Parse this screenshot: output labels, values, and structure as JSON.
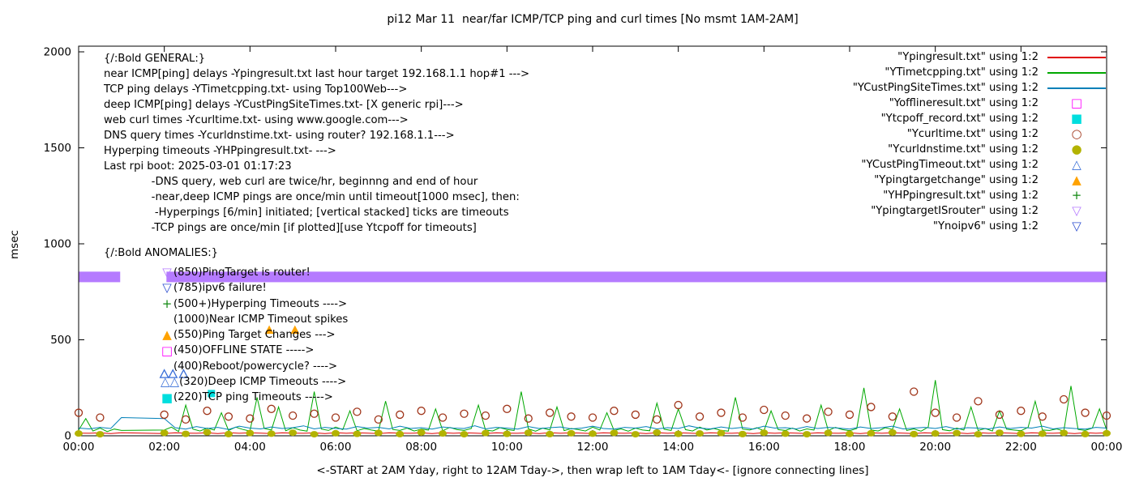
{
  "chart_data": {
    "type": "line",
    "title": "pi12 Mar 11  near/far ICMP/TCP ping and curl times [No msmt 1AM-2AM]",
    "x_label": "<-START at 2AM Yday, right to 12AM Tday->, then wrap left to 1AM Tday<- [ignore connecting lines]",
    "y_label": "msec",
    "y_max": 2000,
    "x_hours": 24,
    "y_ticks": [
      0,
      500,
      1000,
      1500,
      2000
    ],
    "x_tick_labels": [
      "00:00",
      "02:00",
      "04:00",
      "06:00",
      "08:00",
      "10:00",
      "12:00",
      "14:00",
      "16:00",
      "18:00",
      "20:00",
      "22:00",
      "00:00"
    ],
    "grid": false,
    "legend_position": "top-right",
    "legend": [
      {
        "label": "\"Ypingresult.txt\" using 1:2",
        "sample": "line",
        "color": "#e00000"
      },
      {
        "label": "\"YTimetcpping.txt\" using 1:2",
        "sample": "line",
        "color": "#00a800"
      },
      {
        "label": "\"YCustPingSiteTimes.txt\" using 1:2",
        "sample": "line",
        "color": "#0080b8"
      },
      {
        "label": "\"Yofflineresult.txt\" using 1:2",
        "sample": "square-open",
        "color": "#ff00ff"
      },
      {
        "label": "\"Ytcpoff_record.txt\" using 1:2",
        "sample": "square-filled",
        "color": "#00dede"
      },
      {
        "label": "\"Ycurltime.txt\" using 1:2",
        "sample": "circle-open",
        "color": "#a0351a"
      },
      {
        "label": "\"Ycurldnstime.txt\" using 1:2",
        "sample": "circle-filled",
        "color": "#b3b300"
      },
      {
        "label": "\"YCustPingTimeout.txt\" using 1:2",
        "sample": "tri-up-open",
        "color": "#3a6fd8"
      },
      {
        "label": "\"Ypingtargetchange\" using 1:2",
        "sample": "tri-up-filled",
        "color": "#ffa200"
      },
      {
        "label": "\"YHPpingresult.txt\" using 1:2",
        "sample": "plus",
        "color": "#118811"
      },
      {
        "label": "\"YpingtargetISrouter\" using 1:2",
        "sample": "tri-down-open",
        "color": "#b57bff"
      },
      {
        "label": "\"Ynoipv6\" using 1:2",
        "sample": "tri-down-open",
        "color": "#2e4fd0"
      }
    ],
    "lines": [
      {
        "name": "Ypingresult.txt",
        "color": "#e00000",
        "x_start": 0,
        "x_step_hours": 0.25,
        "values": [
          14,
          13,
          15,
          12,
          16,
          null,
          null,
          null,
          12,
          15,
          14,
          13,
          15,
          12,
          16,
          13,
          15,
          14,
          12,
          15,
          14,
          13,
          15,
          12,
          16,
          13,
          15,
          14,
          12,
          15,
          14,
          13,
          15,
          12,
          16,
          13,
          15,
          14,
          12,
          15,
          14,
          13,
          15,
          12,
          16,
          13,
          15,
          14,
          12,
          15,
          14,
          13,
          15,
          12,
          16,
          13,
          15,
          14,
          12,
          15,
          14,
          13,
          15,
          12,
          16,
          13,
          15,
          14,
          12,
          15,
          14,
          13,
          15,
          12,
          16,
          13,
          15,
          14,
          12,
          15,
          14,
          13,
          15,
          12,
          16,
          13,
          15,
          14,
          12,
          15,
          14,
          13,
          15,
          12,
          16,
          13,
          15
        ]
      },
      {
        "name": "YTimetcpping.txt",
        "color": "#00a800",
        "x_start": 0,
        "x_step_hours": 0.1666667,
        "values": [
          30,
          90,
          25,
          40,
          22,
          35,
          28,
          null,
          null,
          null,
          null,
          null,
          30,
          45,
          22,
          160,
          35,
          25,
          40,
          30,
          120,
          28,
          45,
          33,
          25,
          200,
          38,
          30,
          150,
          26,
          42,
          30,
          24,
          230,
          35,
          28,
          45,
          32,
          130,
          26,
          38,
          30,
          24,
          180,
          33,
          28,
          40,
          25,
          35,
          30,
          140,
          26,
          44,
          32,
          28,
          38,
          160,
          30,
          25,
          42,
          33,
          28,
          230,
          36,
          24,
          40,
          30,
          150,
          27,
          38,
          32,
          25,
          45,
          30,
          120,
          28,
          36,
          24,
          40,
          30,
          26,
          170,
          34,
          28,
          140,
          32,
          25,
          45,
          30,
          38,
          28,
          24,
          200,
          35,
          30,
          42,
          26,
          130,
          32,
          28,
          40,
          25,
          36,
          30,
          160,
          28,
          44,
          32,
          26,
          38,
          250,
          30,
          25,
          42,
          33,
          140,
          28,
          36,
          24,
          45,
          290,
          32,
          26,
          40,
          30,
          150,
          28,
          38,
          25,
          130,
          34,
          30,
          26,
          44,
          180,
          30,
          28,
          36,
          25,
          260,
          33,
          28,
          40,
          140,
          30
        ]
      },
      {
        "name": "YCustPingSiteTimes.txt",
        "color": "#0080b8",
        "x_start": 0,
        "x_step_hours": 0.25,
        "values": [
          40,
          36,
          44,
          38,
          95,
          null,
          null,
          null,
          90,
          42,
          35,
          48,
          38,
          44,
          33,
          50,
          40,
          36,
          46,
          38,
          42,
          52,
          36,
          44,
          38,
          35,
          48,
          40,
          44,
          36,
          50,
          38,
          42,
          35,
          46,
          40,
          38,
          52,
          36,
          44,
          40,
          35,
          48,
          38,
          42,
          46,
          36,
          40,
          50,
          38,
          35,
          44,
          40,
          48,
          36,
          42,
          38,
          52,
          40,
          36,
          46,
          38,
          44,
          35,
          50,
          40,
          42,
          36,
          48,
          38,
          44,
          40,
          35,
          46,
          38,
          42,
          50,
          36,
          40,
          44,
          38,
          48,
          35,
          42,
          40,
          36,
          46,
          38,
          44,
          40,
          50,
          36,
          42,
          38,
          35,
          44,
          40
        ]
      }
    ],
    "points": [
      {
        "name": "Ycurltime.txt",
        "marker": "circle-open",
        "color": "#a0351a",
        "x": [
          0,
          0.5,
          2,
          2.5,
          3,
          3.5,
          4,
          4.5,
          5,
          5.5,
          6,
          6.5,
          7,
          7.5,
          8,
          8.5,
          9,
          9.5,
          10,
          10.5,
          11,
          11.5,
          12,
          12.5,
          13,
          13.5,
          14,
          14.5,
          15,
          15.5,
          16,
          16.5,
          17,
          17.5,
          18,
          18.5,
          19,
          19.5,
          20,
          20.5,
          21,
          21.5,
          22,
          22.5,
          23,
          23.5,
          24
        ],
        "y": [
          120,
          95,
          110,
          85,
          130,
          100,
          90,
          140,
          105,
          115,
          95,
          125,
          85,
          110,
          130,
          95,
          115,
          105,
          140,
          90,
          120,
          100,
          95,
          130,
          110,
          85,
          160,
          100,
          120,
          95,
          135,
          105,
          90,
          125,
          110,
          150,
          100,
          230,
          120,
          95,
          180,
          110,
          130,
          100,
          190,
          120,
          105
        ]
      },
      {
        "name": "Ycurldnstime.txt",
        "marker": "circle-filled",
        "color": "#b3b300",
        "x": [
          0,
          0.5,
          2,
          2.5,
          3,
          3.5,
          4,
          4.5,
          5,
          5.5,
          6,
          6.5,
          7,
          7.5,
          8,
          8.5,
          9,
          9.5,
          10,
          10.5,
          11,
          11.5,
          12,
          12.5,
          13,
          13.5,
          14,
          14.5,
          15,
          15.5,
          16,
          16.5,
          17,
          17.5,
          18,
          18.5,
          19,
          19.5,
          20,
          20.5,
          21,
          21.5,
          22,
          22.5,
          23,
          23.5,
          24
        ],
        "y": [
          12,
          8,
          15,
          10,
          18,
          9,
          14,
          11,
          16,
          8,
          13,
          10,
          15,
          9,
          17,
          12,
          8,
          14,
          10,
          16,
          9,
          13,
          11,
          15,
          8,
          17,
          10,
          12,
          14,
          9,
          16,
          11,
          8,
          15,
          10,
          13,
          17,
          9,
          12,
          14,
          8,
          16,
          10,
          11,
          15,
          9,
          13
        ]
      },
      {
        "name": "YCustPingTimeout.txt",
        "marker": "tri-up-open",
        "color": "#3a6fd8",
        "x": [
          2.0,
          2.2,
          2.45
        ],
        "y": [
          320,
          320,
          320
        ]
      },
      {
        "name": "Ypingtargetchange",
        "marker": "tri-up-filled",
        "color": "#ffa200",
        "x": [
          4.45,
          5.05
        ],
        "y": [
          550,
          550
        ]
      },
      {
        "name": "Ytcpoff_record.txt",
        "marker": "square-filled",
        "color": "#00dede",
        "x": [
          3.1
        ],
        "y": [
          220
        ]
      },
      {
        "name": "Yofflineresult.txt",
        "marker": "square-open",
        "color": "#ff00ff",
        "x": [],
        "y": []
      },
      {
        "name": "YHPpingresult.txt",
        "marker": "plus",
        "color": "#118811",
        "x": [],
        "y": []
      },
      {
        "name": "Ynoipv6",
        "marker": "tri-down-open",
        "color": "#2e4fd0",
        "x": [],
        "y": []
      }
    ],
    "band": {
      "name": "YpingtargetISrouter",
      "color": "#b57bff",
      "y_top": 855,
      "y_bottom": 800,
      "segments": [
        [
          0,
          0.97
        ],
        [
          2.05,
          24
        ]
      ]
    }
  },
  "annotations": {
    "general_lines": [
      "{/:Bold GENERAL:}",
      "near ICMP[ping] delays -Ypingresult.txt last hour target 192.168.1.1 hop#1 --->",
      "TCP ping delays -YTimetcpping.txt- using Top100Web--->",
      "deep ICMP[ping] delays -YCustPingSiteTimes.txt- [X generic rpi]--->",
      "web curl times -Ycurltime.txt- using www.google.com--->",
      "DNS query times -Ycurldnstime.txt- using router? 192.168.1.1--->",
      "Hyperping timeouts -YHPpingresult.txt- --->",
      "Last rpi boot: 2025-03-01 01:17:23",
      "              -DNS query, web curl are twice/hr, beginnng and end of hour",
      "              -near,deep ICMP pings are once/min until timeout[1000 msec], then:",
      "               -Hyperpings [6/min] initiated; [vertical stacked] ticks are timeouts",
      "              -TCP pings are once/min [if plotted][use Ytcpoff for timeouts]"
    ],
    "anomalies_title": "{/:Bold ANOMALIES:}",
    "anomaly_lines": [
      {
        "glyph": "▽",
        "color": "#b57bff",
        "text": "(850)PingTarget is router!"
      },
      {
        "glyph": "▽",
        "color": "#2e4fd0",
        "text": "(785)ipv6 failure!"
      },
      {
        "glyph": "+",
        "color": "#118811",
        "text": "(500+)Hyperping Timeouts ---->"
      },
      {
        "glyph": "",
        "color": "#000000",
        "text": "(1000)Near ICMP Timeout spikes"
      },
      {
        "glyph": "▲",
        "color": "#ffa200",
        "text": "(550)Ping Target Changes --->"
      },
      {
        "glyph": "□",
        "color": "#ff00ff",
        "text": "(450)OFFLINE STATE ----->"
      },
      {
        "glyph": "",
        "color": "#000000",
        "text": "(400)Reboot/powercycle? ---->"
      },
      {
        "glyph": "△△",
        "color": "#3a6fd8",
        "text": "(320)Deep ICMP Timeouts ---->"
      },
      {
        "glyph": "■",
        "color": "#00dede",
        "text": "(220)TCP ping Timeouts ----->"
      }
    ]
  }
}
